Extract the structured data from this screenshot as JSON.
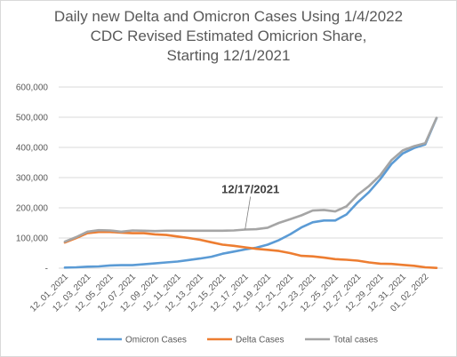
{
  "chart_data": {
    "type": "line",
    "title": [
      "Daily new Delta and Omicron Cases Using 1/4/2022",
      "CDC Revised Estimated Omicrion Share,",
      "Starting 12/1/2021"
    ],
    "xlabel": "",
    "ylabel": "",
    "ylim": [
      0,
      600000
    ],
    "yticks": [
      0,
      100000,
      200000,
      300000,
      400000,
      500000,
      600000
    ],
    "ytick_labels": [
      "-",
      "100,000",
      "200,000",
      "300,000",
      "400,000",
      "500,000",
      "600,000"
    ],
    "x": [
      "12_01_2021",
      "12_02_2021",
      "12_03_2021",
      "12_04_2021",
      "12_05_2021",
      "12_06_2021",
      "12_07_2021",
      "12_08_2021",
      "12_09_2021",
      "12_10_2021",
      "12_11_2021",
      "12_12_2021",
      "12_13_2021",
      "12_14_2021",
      "12_15_2021",
      "12_16_2021",
      "12_17_2021",
      "12_18_2021",
      "12_19_2021",
      "12_20_2021",
      "12_21_2021",
      "12_22_2021",
      "12_23_2021",
      "12_24_2021",
      "12_25_2021",
      "12_26_2021",
      "12_27_2021",
      "12_28_2021",
      "12_29_2021",
      "12_30_2021",
      "12_31_2021",
      "01_01_2022",
      "01_02_2022",
      "01_03_2022"
    ],
    "x_tick_labels": [
      "12_01_2021",
      "12_03_2021",
      "12_05_2021",
      "12_07_2021",
      "12_09_2021",
      "12_11_2021",
      "12_13_2021",
      "12_15_2021",
      "12_17_2021",
      "12_19_2021",
      "12_21_2021",
      "12_23_2021",
      "12_25_2021",
      "12_27_2021",
      "12_29_2021",
      "12_31_2021",
      "01_02_2022"
    ],
    "series": [
      {
        "name": "Omicron Cases",
        "color": "#5B9BD5",
        "values": [
          2000,
          3000,
          5000,
          6000,
          9000,
          10000,
          10000,
          13000,
          16000,
          19000,
          22000,
          27000,
          32000,
          38000,
          48000,
          55000,
          62000,
          68000,
          78000,
          93000,
          112000,
          135000,
          152000,
          158000,
          158000,
          178000,
          218000,
          252000,
          295000,
          345000,
          380000,
          398000,
          410000,
          497000
        ]
      },
      {
        "name": "Delta Cases",
        "color": "#ED7D31",
        "values": [
          85000,
          100000,
          116000,
          120000,
          120000,
          118000,
          116000,
          116000,
          112000,
          110000,
          105000,
          100000,
          94000,
          86000,
          78000,
          74000,
          69000,
          64000,
          61000,
          57000,
          50000,
          41000,
          39000,
          35000,
          30000,
          28000,
          25000,
          19000,
          15000,
          14000,
          11000,
          8000,
          3000,
          1000
        ]
      },
      {
        "name": "Total cases",
        "color": "#A5A5A5",
        "values": [
          88000,
          103000,
          121000,
          126000,
          125000,
          121000,
          125000,
          124000,
          123000,
          124000,
          124000,
          124000,
          124000,
          124000,
          124000,
          125000,
          128000,
          129000,
          134000,
          150000,
          162000,
          175000,
          191000,
          193000,
          188000,
          205000,
          243000,
          272000,
          308000,
          358000,
          390000,
          404000,
          414000,
          498000
        ]
      }
    ],
    "annotations": [
      {
        "text": "12/17/2021",
        "x": "12_17_2021",
        "y": 128000
      }
    ],
    "grid": true,
    "legend": "bottom"
  }
}
